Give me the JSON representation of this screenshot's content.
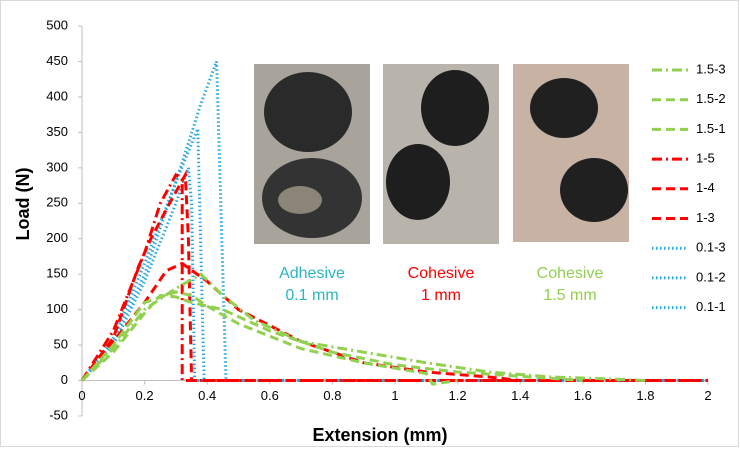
{
  "chart_data": {
    "type": "line",
    "xlabel": "Extension (mm)",
    "ylabel": "Load (N)",
    "xlim": [
      0,
      2
    ],
    "xticks": [
      0,
      0.2,
      0.4,
      0.6,
      0.8,
      1,
      1.2,
      1.4,
      1.6,
      1.8,
      2
    ],
    "ylim": [
      -50,
      500
    ],
    "yticks": [
      -50,
      0,
      50,
      100,
      150,
      200,
      250,
      300,
      350,
      400,
      450,
      500
    ],
    "grid": false,
    "legend": "right",
    "series": [
      {
        "name": "1.5-3",
        "color": "#92d050",
        "dash": "dashdot",
        "x": [
          0,
          0.1,
          0.2,
          0.3,
          0.38,
          0.45,
          0.55,
          0.7,
          0.9,
          1.1,
          1.3,
          1.5,
          1.7,
          1.8
        ],
        "y": [
          0,
          45,
          100,
          130,
          150,
          120,
          85,
          55,
          40,
          25,
          12,
          5,
          2,
          0
        ]
      },
      {
        "name": "1.5-2",
        "color": "#92d050",
        "dash": "dash",
        "x": [
          0,
          0.1,
          0.2,
          0.25,
          0.3,
          0.35,
          0.45,
          0.6,
          0.8,
          1.0,
          1.2,
          1.4,
          1.6
        ],
        "y": [
          0,
          40,
          95,
          120,
          118,
          110,
          100,
          70,
          40,
          22,
          12,
          6,
          0
        ]
      },
      {
        "name": "1.5-1",
        "color": "#92d050",
        "dash": "dash",
        "x": [
          0,
          0.1,
          0.2,
          0.3,
          0.35,
          0.4,
          0.5,
          0.7,
          0.9,
          1.1,
          1.12,
          1.2
        ],
        "y": [
          0,
          50,
          110,
          125,
          120,
          105,
          80,
          45,
          25,
          10,
          -5,
          0
        ]
      },
      {
        "name": "1-5",
        "color": "#ff0000",
        "dash": "dashdot",
        "x": [
          0,
          0.1,
          0.2,
          0.25,
          0.3,
          0.32,
          0.32,
          2
        ],
        "y": [
          0,
          70,
          180,
          250,
          290,
          285,
          0,
          0
        ]
      },
      {
        "name": "1-4",
        "color": "#ff0000",
        "dash": "dash",
        "x": [
          0,
          0.1,
          0.18,
          0.22,
          0.28,
          0.33,
          0.34,
          0.35,
          2
        ],
        "y": [
          0,
          60,
          160,
          200,
          250,
          290,
          200,
          0,
          0
        ]
      },
      {
        "name": "1-3",
        "color": "#ff0000",
        "dash": "dash",
        "x": [
          0,
          0.1,
          0.2,
          0.27,
          0.32,
          0.4,
          0.5,
          0.7,
          0.9,
          1.1,
          1.3,
          1.4
        ],
        "y": [
          0,
          55,
          110,
          155,
          165,
          140,
          100,
          55,
          25,
          12,
          5,
          0
        ]
      },
      {
        "name": "0.1-3",
        "color": "#29a8e0",
        "dash": "dot",
        "x": [
          0,
          0.1,
          0.2,
          0.3,
          0.34,
          0.35,
          0.36,
          2
        ],
        "y": [
          0,
          50,
          140,
          250,
          300,
          250,
          0,
          0
        ]
      },
      {
        "name": "0.1-2",
        "color": "#29a8e0",
        "dash": "dot",
        "x": [
          0,
          0.1,
          0.2,
          0.3,
          0.37,
          0.39,
          2
        ],
        "y": [
          0,
          55,
          150,
          280,
          355,
          0,
          0
        ]
      },
      {
        "name": "0.1-1",
        "color": "#29a8e0",
        "dash": "dot",
        "x": [
          0,
          0.1,
          0.2,
          0.3,
          0.38,
          0.43,
          0.46,
          2
        ],
        "y": [
          0,
          60,
          165,
          280,
          390,
          450,
          0,
          0
        ]
      }
    ],
    "annotations": [
      {
        "lines": [
          "Adhesive",
          "0.1 mm"
        ],
        "color": "#2bb5c0"
      },
      {
        "lines": [
          "Cohesive",
          "1 mm"
        ],
        "color": "#ff0000"
      },
      {
        "lines": [
          "Cohesive",
          "1.5 mm"
        ],
        "color": "#92d050"
      }
    ]
  }
}
